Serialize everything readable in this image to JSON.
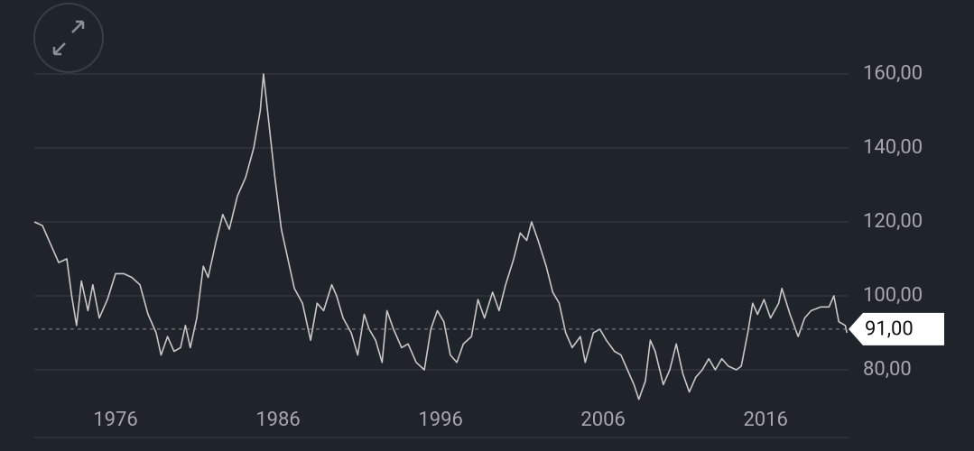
{
  "chart_data": {
    "type": "line",
    "x": [
      1971.0,
      1971.5,
      1972.0,
      1972.5,
      1973.0,
      1973.3,
      1973.6,
      1973.9,
      1974.3,
      1974.6,
      1975.0,
      1975.5,
      1976.0,
      1976.5,
      1977.0,
      1977.5,
      1978.0,
      1978.5,
      1978.8,
      1979.2,
      1979.6,
      1980.0,
      1980.3,
      1980.6,
      1981.0,
      1981.4,
      1981.7,
      1982.2,
      1982.6,
      1983.0,
      1983.5,
      1984.0,
      1984.5,
      1984.9,
      1985.1,
      1985.4,
      1985.8,
      1986.2,
      1986.6,
      1987.0,
      1987.5,
      1988.0,
      1988.4,
      1988.8,
      1989.3,
      1989.6,
      1990.0,
      1990.5,
      1990.9,
      1991.3,
      1991.6,
      1992.0,
      1992.4,
      1992.7,
      1993.1,
      1993.6,
      1994.0,
      1994.5,
      1995.0,
      1995.4,
      1995.8,
      1996.2,
      1996.6,
      1997.0,
      1997.4,
      1997.9,
      1998.3,
      1998.7,
      1999.2,
      1999.6,
      2000.0,
      2000.5,
      2000.9,
      2001.3,
      2001.6,
      2002.0,
      2002.5,
      2002.9,
      2003.3,
      2003.7,
      2004.1,
      2004.6,
      2004.9,
      2005.4,
      2005.8,
      2006.2,
      2006.7,
      2007.1,
      2007.5,
      2007.9,
      2008.2,
      2008.6,
      2008.9,
      2009.2,
      2009.7,
      2010.1,
      2010.5,
      2010.9,
      2011.3,
      2011.7,
      2012.1,
      2012.5,
      2012.9,
      2013.3,
      2013.7,
      2014.2,
      2014.5,
      2014.9,
      2015.2,
      2015.5,
      2015.9,
      2016.3,
      2016.8,
      2017.0,
      2017.5,
      2018.0,
      2018.4,
      2018.8,
      2019.4,
      2019.9,
      2020.2,
      2020.5,
      2020.9,
      2021.0
    ],
    "series": [
      {
        "color": "#c8c8c8",
        "values": [
          120,
          119,
          114,
          109,
          110,
          100,
          92,
          104,
          96,
          103,
          94,
          99,
          106,
          106,
          105,
          103,
          95,
          90,
          84,
          89,
          85,
          86,
          92,
          86,
          94,
          108,
          105,
          115,
          122,
          118,
          127,
          132,
          140,
          150,
          160,
          148,
          132,
          118,
          110,
          102,
          98,
          88,
          98,
          96,
          103,
          100,
          94,
          90,
          84,
          95,
          91,
          88,
          82,
          96,
          91,
          86,
          87,
          82,
          80,
          91,
          96,
          93,
          84,
          82,
          87,
          89,
          99,
          94,
          101,
          96,
          103,
          110,
          117,
          115,
          120,
          115,
          108,
          101,
          98,
          90,
          86,
          89,
          82,
          90,
          91,
          88,
          85,
          84,
          80,
          76,
          72,
          77,
          88,
          85,
          76,
          80,
          87,
          79,
          74,
          78,
          80,
          83,
          80,
          83,
          81,
          80,
          81,
          90,
          98,
          95,
          99,
          94,
          98,
          102,
          95,
          89,
          94,
          96,
          97,
          97,
          100,
          93,
          92,
          90
        ]
      }
    ],
    "xlim": [
      1971,
      2021.1
    ],
    "ylim": [
      60,
      180
    ],
    "xticks": [
      1976,
      1986,
      1996,
      2006,
      2016
    ],
    "yticks": [
      {
        "value": 80,
        "label": "80,00"
      },
      {
        "value": 100,
        "label": "100,00"
      },
      {
        "value": 120,
        "label": "120,00"
      },
      {
        "value": 140,
        "label": "140,00"
      },
      {
        "value": 160,
        "label": "160,00"
      }
    ],
    "current": {
      "value": 91,
      "label": "91,00"
    },
    "grid": true
  }
}
